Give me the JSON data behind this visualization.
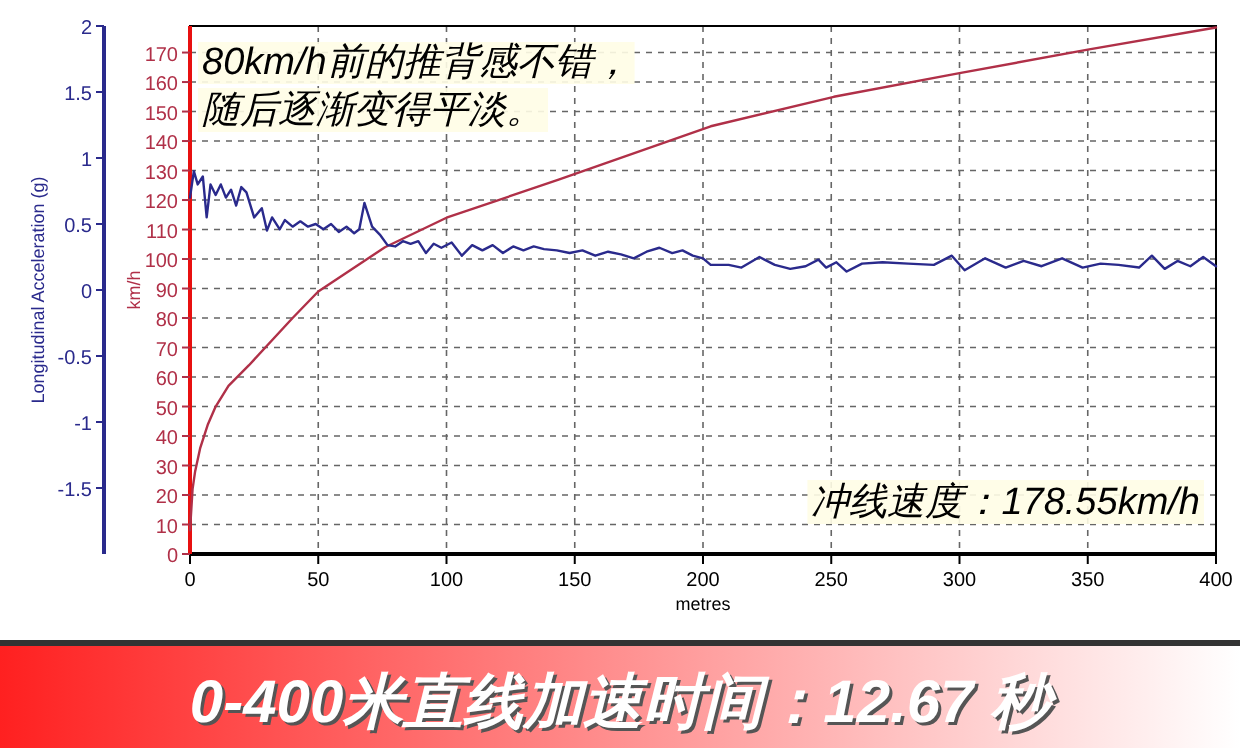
{
  "chart_data": {
    "type": "line",
    "title": "0-400米直线加速时间：12.67 秒",
    "xlabel": "metres",
    "ylabel": "km/h",
    "y2label": "Longitudinal Acceleration (g)",
    "xlim": [
      0,
      400
    ],
    "xticks": [
      0,
      50,
      100,
      150,
      200,
      250,
      300,
      350,
      400
    ],
    "ylim": [
      0,
      179
    ],
    "yticks": [
      0,
      10,
      20,
      30,
      40,
      50,
      60,
      70,
      80,
      90,
      100,
      110,
      120,
      130,
      140,
      150,
      160,
      170
    ],
    "y2lim": [
      -2,
      2
    ],
    "y2ticks": [
      -1.5,
      -1,
      -0.5,
      0,
      0.5,
      1,
      1.5,
      2
    ],
    "grid": true,
    "line_style": "solid",
    "annotations": [
      "80km/h前的推背感不错，",
      "随后逐渐变得平淡。",
      "冲线速度：178.55km/h"
    ],
    "series": [
      {
        "color": "#b03048",
        "x": [
          0,
          1,
          2,
          4,
          7,
          10,
          15,
          23,
          40,
          50,
          76,
          100,
          144,
          203,
          251,
          300,
          350,
          400
        ],
        "values": [
          8,
          22,
          28,
          36,
          44,
          50,
          57,
          64,
          80,
          89,
          104,
          114,
          127,
          145,
          155,
          163,
          171,
          178.5
        ]
      },
      {
        "color": "#2a2a8c",
        "axis": "y2",
        "x": [
          0,
          1.5,
          3,
          5,
          6.5,
          8,
          10,
          12,
          14,
          16,
          18,
          20,
          22,
          25,
          28,
          30,
          32,
          35,
          37,
          40,
          43,
          46,
          49,
          52,
          55,
          58,
          61,
          64,
          66,
          68,
          71,
          74,
          77,
          80,
          83,
          86,
          89,
          92,
          95,
          98,
          102,
          106,
          110,
          114,
          118,
          122,
          126,
          130,
          134,
          138,
          143,
          148,
          153,
          158,
          163,
          168,
          173,
          178,
          183,
          188,
          192,
          196,
          200,
          203,
          210,
          215,
          222,
          228,
          234,
          240,
          245,
          248,
          252,
          256,
          262,
          270,
          280,
          290,
          297,
          302,
          310,
          318,
          325,
          332,
          340,
          348,
          355,
          362,
          370,
          375,
          380,
          385,
          390,
          395,
          400
        ],
        "values": [
          0.7,
          0.9,
          0.8,
          0.86,
          0.55,
          0.8,
          0.72,
          0.8,
          0.7,
          0.76,
          0.64,
          0.78,
          0.74,
          0.55,
          0.62,
          0.45,
          0.55,
          0.46,
          0.53,
          0.48,
          0.52,
          0.48,
          0.5,
          0.46,
          0.5,
          0.44,
          0.48,
          0.43,
          0.46,
          0.66,
          0.48,
          0.42,
          0.34,
          0.33,
          0.37,
          0.35,
          0.37,
          0.28,
          0.35,
          0.32,
          0.36,
          0.26,
          0.34,
          0.3,
          0.34,
          0.28,
          0.33,
          0.3,
          0.33,
          0.31,
          0.3,
          0.28,
          0.3,
          0.26,
          0.29,
          0.27,
          0.24,
          0.29,
          0.32,
          0.28,
          0.3,
          0.26,
          0.24,
          0.19,
          0.19,
          0.17,
          0.25,
          0.19,
          0.16,
          0.18,
          0.23,
          0.17,
          0.21,
          0.14,
          0.2,
          0.21,
          0.2,
          0.19,
          0.26,
          0.15,
          0.24,
          0.17,
          0.22,
          0.18,
          0.24,
          0.17,
          0.2,
          0.19,
          0.17,
          0.26,
          0.16,
          0.22,
          0.18,
          0.25,
          0.18
        ]
      }
    ]
  }
}
